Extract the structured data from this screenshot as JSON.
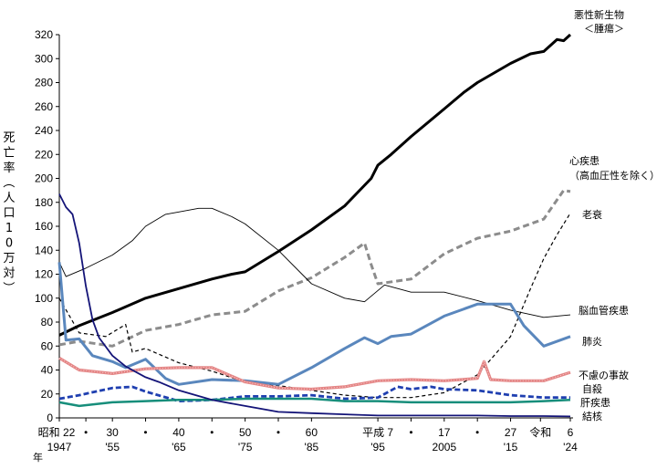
{
  "chart_data": {
    "type": "line",
    "ylabel": "死亡率（人口10万対）",
    "ylim": [
      0,
      320
    ],
    "yticks": [
      "0",
      "20",
      "40",
      "60",
      "80",
      "100",
      "120",
      "140",
      "160",
      "180",
      "200",
      "220",
      "240",
      "260",
      "280",
      "300",
      "320"
    ],
    "xlim": [
      1947,
      2024
    ],
    "xticks_era": [
      {
        "x": 1947,
        "text": "昭和 22"
      },
      {
        "x": 1951,
        "text": "・"
      },
      {
        "x": 1955,
        "text": "30"
      },
      {
        "x": 1960,
        "text": "・"
      },
      {
        "x": 1965,
        "text": "40"
      },
      {
        "x": 1970,
        "text": "・"
      },
      {
        "x": 1975,
        "text": "50"
      },
      {
        "x": 1980,
        "text": "・"
      },
      {
        "x": 1985,
        "text": "60"
      },
      {
        "x": 1995,
        "text": "平成 7"
      },
      {
        "x": 2000,
        "text": "・"
      },
      {
        "x": 2005,
        "text": "17"
      },
      {
        "x": 2010,
        "text": "・"
      },
      {
        "x": 2015,
        "text": "27"
      },
      {
        "x": 2019.5,
        "text": "令和"
      },
      {
        "x": 2024,
        "text": "6"
      }
    ],
    "xticks_year": [
      {
        "x": 1947,
        "text": "1947"
      },
      {
        "x": 1955,
        "text": "'55"
      },
      {
        "x": 1965,
        "text": "'65"
      },
      {
        "x": 1975,
        "text": "'75"
      },
      {
        "x": 1985,
        "text": "'85"
      },
      {
        "x": 1995,
        "text": "'95"
      },
      {
        "x": 2005,
        "text": "2005"
      },
      {
        "x": 2015,
        "text": "'15"
      },
      {
        "x": 2024,
        "text": "'24"
      }
    ],
    "x_unit": "年",
    "series": [
      {
        "name": "悪性新生物＜腫瘍＞",
        "label_lines": [
          "悪性新生物",
          "＜腫瘍＞"
        ],
        "color": "#000000",
        "width": 3,
        "dash": "",
        "points": [
          [
            1947,
            69
          ],
          [
            1950,
            77
          ],
          [
            1955,
            88
          ],
          [
            1960,
            100
          ],
          [
            1965,
            108
          ],
          [
            1970,
            116
          ],
          [
            1973,
            120
          ],
          [
            1975,
            122
          ],
          [
            1980,
            139
          ],
          [
            1985,
            157
          ],
          [
            1990,
            177
          ],
          [
            1994,
            200
          ],
          [
            1995,
            211
          ],
          [
            1997,
            220
          ],
          [
            2000,
            235
          ],
          [
            2005,
            258
          ],
          [
            2008,
            272
          ],
          [
            2010,
            280
          ],
          [
            2015,
            296
          ],
          [
            2018,
            304
          ],
          [
            2020,
            306
          ],
          [
            2022,
            316
          ],
          [
            2023,
            315
          ],
          [
            2024,
            320
          ]
        ]
      },
      {
        "name": "心疾患（高血圧性を除く）",
        "label_lines": [
          "心疾患",
          "（高血圧性を除く）"
        ],
        "color": "#8c8c8c",
        "width": 3,
        "dash": "7,4",
        "points": [
          [
            1947,
            61
          ],
          [
            1950,
            64
          ],
          [
            1955,
            60
          ],
          [
            1960,
            73
          ],
          [
            1965,
            78
          ],
          [
            1970,
            86
          ],
          [
            1975,
            89
          ],
          [
            1980,
            106
          ],
          [
            1985,
            117
          ],
          [
            1990,
            134
          ],
          [
            1993,
            146
          ],
          [
            1994,
            128
          ],
          [
            1995,
            112
          ],
          [
            2000,
            116
          ],
          [
            2005,
            137
          ],
          [
            2010,
            150
          ],
          [
            2015,
            156
          ],
          [
            2020,
            166
          ],
          [
            2023,
            190
          ],
          [
            2024,
            189
          ]
        ]
      },
      {
        "name": "老衰",
        "label_lines": [
          "老衰"
        ],
        "color": "#000000",
        "width": 1.2,
        "dash": "4,3",
        "points": [
          [
            1947,
            100
          ],
          [
            1950,
            71
          ],
          [
            1954,
            68
          ],
          [
            1957,
            78
          ],
          [
            1958,
            55
          ],
          [
            1960,
            58
          ],
          [
            1965,
            46
          ],
          [
            1970,
            39
          ],
          [
            1975,
            30
          ],
          [
            1980,
            27
          ],
          [
            1985,
            23
          ],
          [
            1990,
            19
          ],
          [
            1995,
            17
          ],
          [
            2000,
            17
          ],
          [
            2005,
            21
          ],
          [
            2010,
            36
          ],
          [
            2015,
            68
          ],
          [
            2018,
            108
          ],
          [
            2020,
            133
          ],
          [
            2022,
            153
          ],
          [
            2024,
            171
          ]
        ]
      },
      {
        "name": "脳血管疾患",
        "label_lines": [
          "脳血管疾患"
        ],
        "color": "#000000",
        "width": 0.9,
        "dash": "",
        "points": [
          [
            1947,
            130
          ],
          [
            1948,
            118
          ],
          [
            1951,
            125
          ],
          [
            1955,
            136
          ],
          [
            1958,
            148
          ],
          [
            1960,
            160
          ],
          [
            1963,
            170
          ],
          [
            1965,
            172
          ],
          [
            1968,
            175
          ],
          [
            1970,
            175
          ],
          [
            1973,
            168
          ],
          [
            1975,
            162
          ],
          [
            1980,
            140
          ],
          [
            1985,
            112
          ],
          [
            1990,
            100
          ],
          [
            1993,
            97
          ],
          [
            1996,
            111
          ],
          [
            2000,
            105
          ],
          [
            2005,
            105
          ],
          [
            2010,
            98
          ],
          [
            2015,
            90
          ],
          [
            2020,
            84
          ],
          [
            2024,
            86
          ]
        ]
      },
      {
        "name": "肺炎",
        "label_lines": [
          "肺炎"
        ],
        "color": "#5a87bd",
        "width": 3,
        "dash": "",
        "points": [
          [
            1947,
            130
          ],
          [
            1948,
            65
          ],
          [
            1950,
            66
          ],
          [
            1952,
            52
          ],
          [
            1955,
            47
          ],
          [
            1957,
            42
          ],
          [
            1960,
            49
          ],
          [
            1963,
            33
          ],
          [
            1965,
            28
          ],
          [
            1970,
            32
          ],
          [
            1975,
            31
          ],
          [
            1980,
            28
          ],
          [
            1985,
            42
          ],
          [
            1990,
            58
          ],
          [
            1993,
            67
          ],
          [
            1995,
            62
          ],
          [
            1997,
            68
          ],
          [
            2000,
            70
          ],
          [
            2005,
            85
          ],
          [
            2010,
            95
          ],
          [
            2015,
            95
          ],
          [
            2017,
            77
          ],
          [
            2020,
            60
          ],
          [
            2024,
            68
          ]
        ]
      },
      {
        "name": "不慮の事故",
        "label_lines": [
          "不慮の事故"
        ],
        "color": "#e48585",
        "width": 3.2,
        "dash": "",
        "points": [
          [
            1947,
            50
          ],
          [
            1950,
            40
          ],
          [
            1955,
            37
          ],
          [
            1960,
            41
          ],
          [
            1965,
            42
          ],
          [
            1970,
            42
          ],
          [
            1975,
            30
          ],
          [
            1980,
            25
          ],
          [
            1985,
            24
          ],
          [
            1990,
            26
          ],
          [
            1995,
            31
          ],
          [
            2000,
            32
          ],
          [
            2005,
            31
          ],
          [
            2010,
            33
          ],
          [
            2011,
            47
          ],
          [
            2012,
            32
          ],
          [
            2015,
            31
          ],
          [
            2020,
            31
          ],
          [
            2024,
            38
          ]
        ]
      },
      {
        "name": "自殺",
        "label_lines": [
          "自殺"
        ],
        "color": "#1f3fb0",
        "width": 2.8,
        "dash": "6,3",
        "points": [
          [
            1947,
            16
          ],
          [
            1950,
            19
          ],
          [
            1955,
            25
          ],
          [
            1958,
            26
          ],
          [
            1960,
            22
          ],
          [
            1965,
            14
          ],
          [
            1970,
            15
          ],
          [
            1975,
            18
          ],
          [
            1980,
            18
          ],
          [
            1985,
            19
          ],
          [
            1990,
            16
          ],
          [
            1995,
            17
          ],
          [
            1998,
            26
          ],
          [
            2000,
            24
          ],
          [
            2003,
            26
          ],
          [
            2005,
            24
          ],
          [
            2010,
            23
          ],
          [
            2015,
            19
          ],
          [
            2020,
            17
          ],
          [
            2024,
            17
          ]
        ]
      },
      {
        "name": "肝疾患",
        "label_lines": [
          "肝疾患"
        ],
        "color": "#178e7b",
        "width": 2.5,
        "dash": "",
        "points": [
          [
            1947,
            13
          ],
          [
            1950,
            10
          ],
          [
            1955,
            13
          ],
          [
            1960,
            14
          ],
          [
            1965,
            15
          ],
          [
            1970,
            15
          ],
          [
            1975,
            16
          ],
          [
            1980,
            16
          ],
          [
            1985,
            16
          ],
          [
            1990,
            14
          ],
          [
            1995,
            14
          ],
          [
            2000,
            13
          ],
          [
            2005,
            13
          ],
          [
            2010,
            13
          ],
          [
            2015,
            13
          ],
          [
            2020,
            14
          ],
          [
            2024,
            15
          ]
        ]
      },
      {
        "name": "結核",
        "label_lines": [
          "結核"
        ],
        "color": "#141478",
        "width": 1.8,
        "dash": "",
        "points": [
          [
            1947,
            187
          ],
          [
            1948,
            176
          ],
          [
            1949,
            170
          ],
          [
            1950,
            146
          ],
          [
            1951,
            110
          ],
          [
            1952,
            82
          ],
          [
            1953,
            67
          ],
          [
            1955,
            52
          ],
          [
            1957,
            43
          ],
          [
            1960,
            34
          ],
          [
            1962,
            30
          ],
          [
            1965,
            23
          ],
          [
            1970,
            15
          ],
          [
            1975,
            10
          ],
          [
            1980,
            5
          ],
          [
            1985,
            4
          ],
          [
            1990,
            3
          ],
          [
            1995,
            2
          ],
          [
            2000,
            2
          ],
          [
            2005,
            2
          ],
          [
            2010,
            2
          ],
          [
            2015,
            1.5
          ],
          [
            2020,
            1.5
          ],
          [
            2024,
            1.2
          ]
        ]
      }
    ]
  }
}
